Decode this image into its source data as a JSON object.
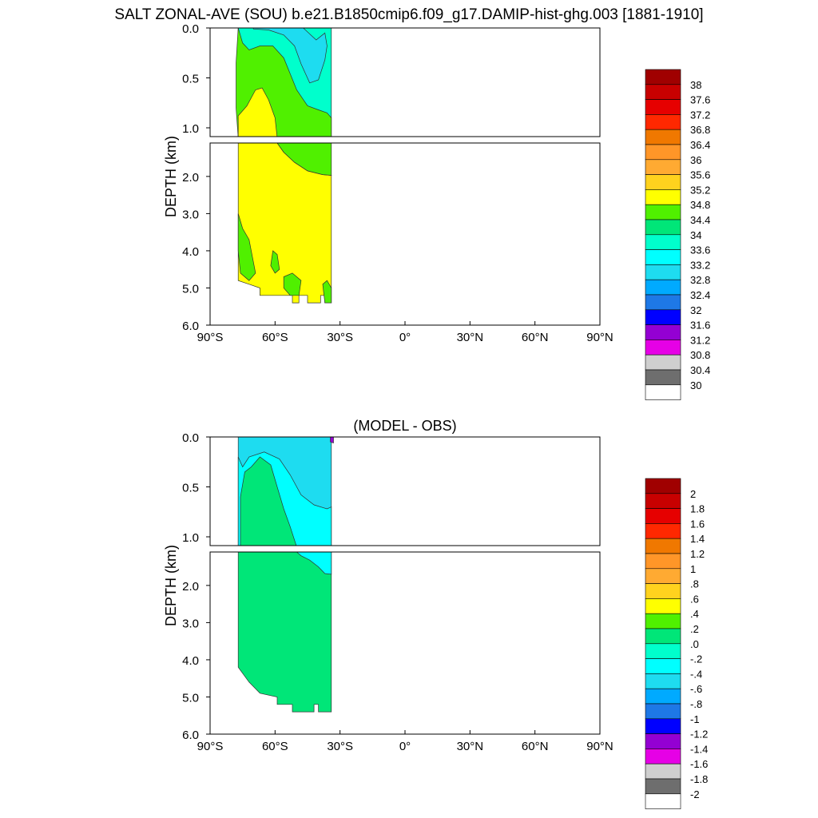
{
  "title": "SALT ZONAL-AVE (SOU) b.e21.B1850cmip6.f09_g17.DAMIP-hist-ghg.003 [1881-1910]",
  "chart_data": [
    {
      "type": "heatmap",
      "title": "",
      "ylabel": "DEPTH (km)",
      "xticks": [
        "90°S",
        "60°S",
        "30°S",
        "0°",
        "30°N",
        "60°N",
        "90°N"
      ],
      "yticks_upper": [
        "0.0",
        "0.5",
        "1.0"
      ],
      "yticks_lower": [
        "2.0",
        "3.0",
        "4.0",
        "5.0",
        "6.0"
      ],
      "xlim": [
        -90,
        90
      ],
      "ylim_km": [
        0,
        6
      ],
      "contour_levels": [
        "30",
        "30.4",
        "30.8",
        "31.2",
        "31.6",
        "32",
        "32.4",
        "32.8",
        "33.2",
        "33.6",
        "34",
        "34.4",
        "34.8",
        "35.2",
        "35.6",
        "36",
        "36.4",
        "36.8",
        "37.2",
        "37.6",
        "38"
      ],
      "colors": [
        "#ffffff",
        "#6e6e6e",
        "#cfcfcf",
        "#e600e6",
        "#9400d3",
        "#0000ff",
        "#1e78e6",
        "#00aaff",
        "#1edcf0",
        "#00ffff",
        "#00ffcc",
        "#00e678",
        "#50f000",
        "#ffff00",
        "#ffd21e",
        "#ffaa32",
        "#ff9628",
        "#f07800",
        "#ff2800",
        "#e60000",
        "#c80000",
        "#a00000"
      ],
      "regions": [
        {
          "zone": "upper",
          "color": "#00ffcc",
          "outline": [
            [
              -77,
              0
            ],
            [
              -37,
              0
            ],
            [
              -35,
              -0.01
            ],
            [
              -34,
              0
            ],
            [
              -34,
              1.1
            ],
            [
              -77,
              1.1
            ]
          ]
        },
        {
          "zone": "upper",
          "color": "#1edcf0",
          "outline": [
            [
              -70,
              0
            ],
            [
              -47,
              0
            ],
            [
              -41,
              0.12
            ],
            [
              -37,
              0.05
            ],
            [
              -36,
              0.18
            ],
            [
              -37,
              0.32
            ],
            [
              -40,
              0.52
            ],
            [
              -44,
              0.55
            ],
            [
              -48,
              0.36
            ],
            [
              -51,
              0.18
            ],
            [
              -56,
              0.07
            ],
            [
              -63,
              0.02
            ],
            [
              -70,
              0.01
            ]
          ]
        },
        {
          "zone": "upper",
          "color": "#50f000",
          "outline": [
            [
              -77,
              0.0
            ],
            [
              -75,
              0.15
            ],
            [
              -72,
              0.22
            ],
            [
              -67,
              0.18
            ],
            [
              -61,
              0.18
            ],
            [
              -56,
              0.3
            ],
            [
              -50,
              0.62
            ],
            [
              -45,
              0.78
            ],
            [
              -40,
              0.82
            ],
            [
              -36,
              0.85
            ],
            [
              -34,
              0.9
            ],
            [
              -34,
              1.1
            ],
            [
              -77,
              1.1
            ],
            [
              -78,
              0.8
            ],
            [
              -78,
              0.35
            ]
          ]
        },
        {
          "zone": "upper",
          "color": "#ffff00",
          "outline": [
            [
              -77,
              1.1
            ],
            [
              -77,
              0.88
            ],
            [
              -73,
              0.78
            ],
            [
              -69,
              0.62
            ],
            [
              -66,
              0.6
            ],
            [
              -63,
              0.72
            ],
            [
              -60,
              0.9
            ],
            [
              -59,
              1.1
            ]
          ]
        },
        {
          "zone": "lower",
          "color": "#ffff00",
          "outline": [
            [
              -77,
              1.1
            ],
            [
              -59,
              1.1
            ],
            [
              -56,
              1.35
            ],
            [
              -51,
              1.62
            ],
            [
              -45,
              1.85
            ],
            [
              -38,
              1.95
            ],
            [
              -34,
              1.97
            ],
            [
              -34,
              5.4
            ],
            [
              -37,
              5.4
            ],
            [
              -37,
              5.2
            ],
            [
              -39,
              5.2
            ],
            [
              -39,
              5.4
            ],
            [
              -45,
              5.4
            ],
            [
              -45,
              5.2
            ],
            [
              -49,
              5.2
            ],
            [
              -49,
              5.4
            ],
            [
              -52,
              5.4
            ],
            [
              -52,
              5.2
            ],
            [
              -67,
              5.2
            ],
            [
              -67,
              5.0
            ],
            [
              -72,
              4.9
            ],
            [
              -77,
              4.8
            ]
          ]
        },
        {
          "zone": "lower",
          "color": "#50f000",
          "outline": [
            [
              -59,
              1.1
            ],
            [
              -34,
              1.1
            ],
            [
              -34,
              1.97
            ],
            [
              -38,
              1.95
            ],
            [
              -45,
              1.85
            ],
            [
              -51,
              1.62
            ],
            [
              -56,
              1.35
            ]
          ]
        },
        {
          "zone": "lower",
          "color": "#50f000",
          "outline": [
            [
              -77,
              3.0
            ],
            [
              -75,
              3.4
            ],
            [
              -72,
              3.7
            ],
            [
              -70,
              4.3
            ],
            [
              -69,
              4.6
            ],
            [
              -72,
              4.8
            ],
            [
              -76,
              4.6
            ],
            [
              -77,
              4.0
            ]
          ]
        },
        {
          "zone": "lower",
          "color": "#50f000",
          "outline": [
            [
              -61,
              4.0
            ],
            [
              -59,
              4.1
            ],
            [
              -58,
              4.5
            ],
            [
              -60,
              4.6
            ],
            [
              -62,
              4.4
            ]
          ]
        },
        {
          "zone": "lower",
          "color": "#50f000",
          "outline": [
            [
              -56,
              4.7
            ],
            [
              -52,
              4.6
            ],
            [
              -48,
              4.8
            ],
            [
              -49,
              5.2
            ],
            [
              -53,
              5.2
            ],
            [
              -56,
              5.0
            ]
          ]
        },
        {
          "zone": "lower",
          "color": "#50f000",
          "outline": [
            [
              -38,
              4.9
            ],
            [
              -36,
              4.8
            ],
            [
              -34,
              5.0
            ],
            [
              -34,
              5.4
            ],
            [
              -37,
              5.4
            ]
          ]
        }
      ]
    },
    {
      "type": "heatmap",
      "title": "(MODEL - OBS)",
      "ylabel": "DEPTH (km)",
      "xticks": [
        "90°S",
        "60°S",
        "30°S",
        "0°",
        "30°N",
        "60°N",
        "90°N"
      ],
      "yticks_upper": [
        "0.0",
        "0.5",
        "1.0"
      ],
      "yticks_lower": [
        "2.0",
        "3.0",
        "4.0",
        "5.0",
        "6.0"
      ],
      "xlim": [
        -90,
        90
      ],
      "ylim_km": [
        0,
        6
      ],
      "contour_levels": [
        "-2",
        "-1.8",
        "-1.6",
        "-1.4",
        "-1.2",
        "-1",
        "-.8",
        "-.6",
        "-.4",
        "-.2",
        ".0",
        ".2",
        ".4",
        ".6",
        ".8",
        "1",
        "1.2",
        "1.4",
        "1.6",
        "1.8",
        "2"
      ],
      "colors": [
        "#ffffff",
        "#6e6e6e",
        "#cfcfcf",
        "#e600e6",
        "#9400d3",
        "#0000ff",
        "#1e78e6",
        "#00aaff",
        "#1edcf0",
        "#00ffff",
        "#00ffcc",
        "#00e678",
        "#50f000",
        "#ffff00",
        "#ffd21e",
        "#ffaa32",
        "#ff9628",
        "#f07800",
        "#ff2800",
        "#e60000",
        "#c80000",
        "#a00000"
      ],
      "regions": [
        {
          "zone": "upper",
          "color": "#1edcf0",
          "outline": [
            [
              -77,
              0
            ],
            [
              -34,
              0
            ],
            [
              -34,
              1.1
            ],
            [
              -77,
              1.1
            ]
          ]
        },
        {
          "zone": "upper",
          "color": "#00ffff",
          "outline": [
            [
              -77,
              0.2
            ],
            [
              -75,
              0.3
            ],
            [
              -72,
              0.2
            ],
            [
              -65,
              0.15
            ],
            [
              -58,
              0.22
            ],
            [
              -53,
              0.38
            ],
            [
              -48,
              0.58
            ],
            [
              -42,
              0.68
            ],
            [
              -36,
              0.72
            ],
            [
              -34,
              0.7
            ],
            [
              -34,
              1.1
            ],
            [
              -77,
              1.1
            ]
          ]
        },
        {
          "zone": "upper",
          "color": "#00e678",
          "outline": [
            [
              -76,
              1.1
            ],
            [
              -76,
              0.6
            ],
            [
              -74,
              0.35
            ],
            [
              -71,
              0.3
            ],
            [
              -67,
              0.2
            ],
            [
              -62,
              0.28
            ],
            [
              -59,
              0.5
            ],
            [
              -56,
              0.72
            ],
            [
              -53,
              0.9
            ],
            [
              -50,
              1.1
            ]
          ]
        },
        {
          "zone": "upper",
          "color": "#9400d3",
          "outline": [
            [
              -34.5,
              0
            ],
            [
              -33,
              0
            ],
            [
              -33,
              0.06
            ],
            [
              -34.5,
              0.05
            ]
          ]
        },
        {
          "zone": "lower",
          "color": "#00e678",
          "outline": [
            [
              -77,
              1.1
            ],
            [
              -34,
              1.1
            ],
            [
              -34,
              5.4
            ],
            [
              -40,
              5.4
            ],
            [
              -40,
              5.2
            ],
            [
              -42,
              5.2
            ],
            [
              -42,
              5.4
            ],
            [
              -52,
              5.4
            ],
            [
              -52,
              5.2
            ],
            [
              -59,
              5.2
            ],
            [
              -59,
              5.0
            ],
            [
              -67,
              4.9
            ],
            [
              -72,
              4.6
            ],
            [
              -77,
              4.2
            ]
          ]
        },
        {
          "zone": "lower",
          "color": "#00ffff",
          "outline": [
            [
              -50,
              1.1
            ],
            [
              -34,
              1.1
            ],
            [
              -34,
              1.7
            ],
            [
              -37,
              1.68
            ],
            [
              -40,
              1.5
            ],
            [
              -44,
              1.32
            ],
            [
              -48,
              1.2
            ]
          ]
        }
      ]
    }
  ]
}
